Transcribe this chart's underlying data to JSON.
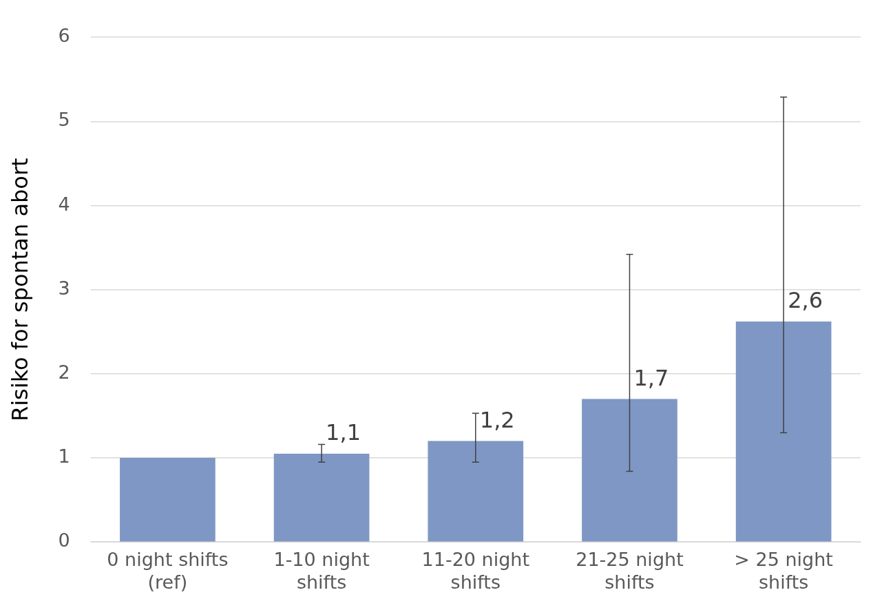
{
  "chart_data": {
    "type": "bar",
    "ylabel": "Risiko for spontan abort",
    "categories": [
      "0 night shifts (ref)",
      "1-10 night shifts",
      "11-20 night shifts",
      "21-25 night shifts",
      "> 25 night shifts"
    ],
    "values": [
      1.0,
      1.05,
      1.2,
      1.7,
      2.62
    ],
    "errors": [
      null,
      [
        0.95,
        1.16
      ],
      [
        0.95,
        1.53
      ],
      [
        0.84,
        3.42
      ],
      [
        1.3,
        5.29
      ]
    ],
    "value_labels": [
      null,
      "1,1",
      "1,2",
      "1,7",
      "2,6"
    ],
    "color": "#7f97c4",
    "ylim": [
      0,
      6
    ],
    "yticks": [
      0,
      1,
      2,
      3,
      4,
      5,
      6
    ],
    "grid": "y",
    "legend": false
  }
}
